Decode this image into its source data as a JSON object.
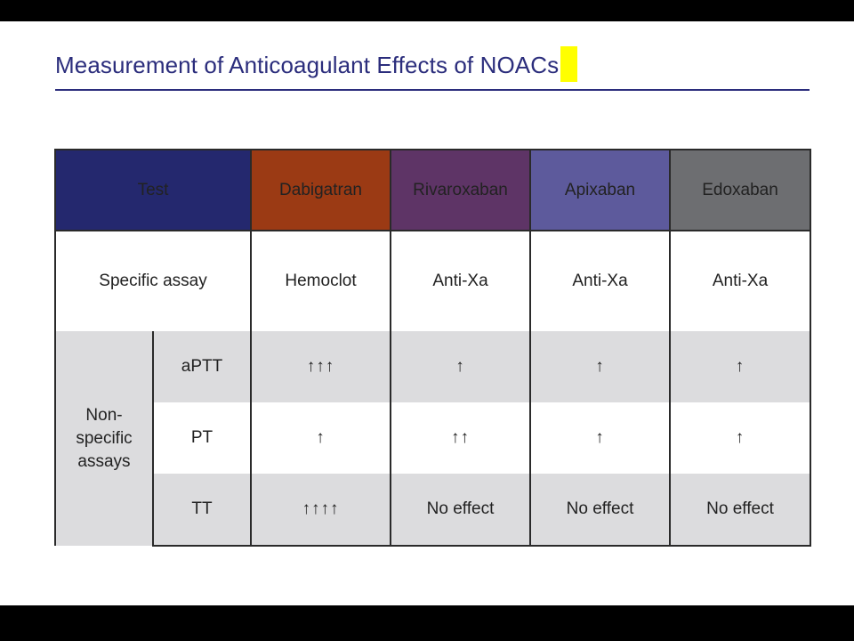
{
  "slide": {
    "title": "Measurement of Anticoagulant Effects of NOACs"
  },
  "table": {
    "headers": {
      "test": "Test",
      "dabigatran": "Dabigatran",
      "rivaroxaban": "Rivaroxaban",
      "apixaban": "Apixaban",
      "edoxaban": "Edoxaban"
    },
    "colors": {
      "test": "#24286e",
      "dabigatran": "#9b3a14",
      "rivaroxaban": "#5e3466",
      "apixaban": "#5d5a9c",
      "edoxaban": "#6d6e71"
    },
    "specific": {
      "label": "Specific assay",
      "dabigatran": "Hemoclot",
      "rivaroxaban": "Anti-Xa",
      "apixaban": "Anti-Xa",
      "edoxaban": "Anti-Xa"
    },
    "nonspecific_label": "Non-\nspecific\nassays",
    "rows": [
      {
        "test": "aPTT",
        "dabigatran": "↑↑↑",
        "rivaroxaban": "↑",
        "apixaban": "↑",
        "edoxaban": "↑"
      },
      {
        "test": "PT",
        "dabigatran": "↑",
        "rivaroxaban": "↑↑",
        "apixaban": "↑",
        "edoxaban": "↑"
      },
      {
        "test": "TT",
        "dabigatran": "↑↑↑↑",
        "rivaroxaban": "No effect",
        "apixaban": "No effect",
        "edoxaban": "No effect"
      }
    ]
  }
}
